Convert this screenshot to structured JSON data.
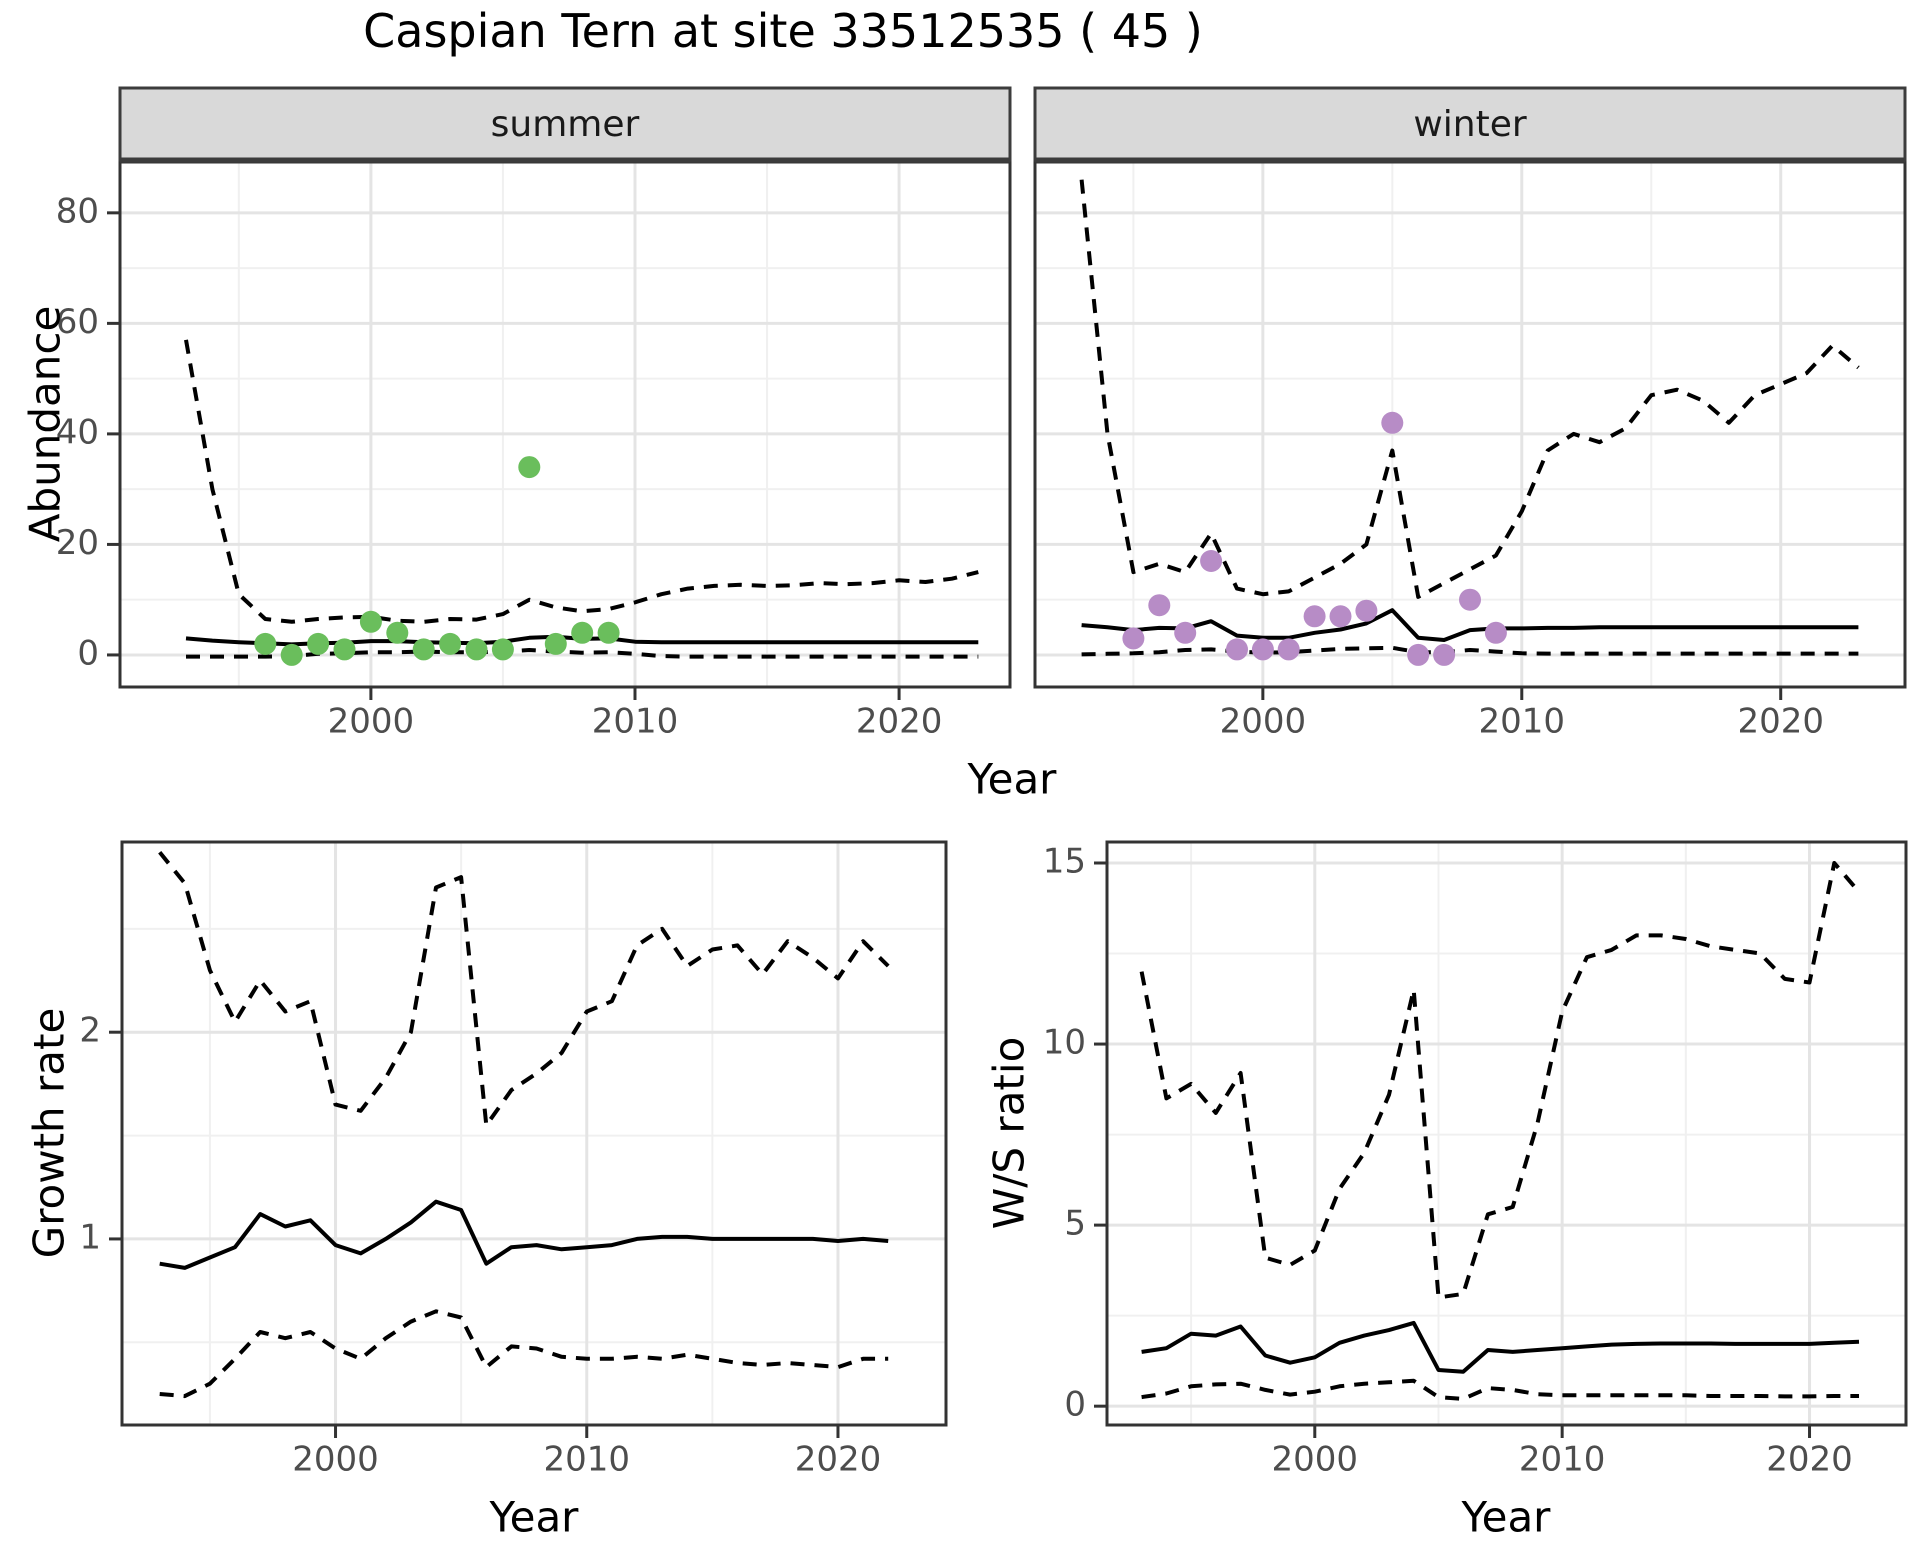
{
  "title": "Caspian Tern at site 33512535 ( 45 )",
  "colors": {
    "summer_point": "#6abe5c",
    "winter_point": "#b78cc6",
    "line": "#000000",
    "strip_fill": "#d9d9d9",
    "strip_border": "#3c3c3c",
    "panel_border": "#333333",
    "grid_major": "#e4e4e4",
    "grid_minor": "#f0f0f0",
    "tick_color": "#333333",
    "tick_label_color": "#4d4d4d",
    "text_color": "#000000"
  },
  "chart_data": [
    {
      "id": "abundance-summer",
      "type": "line",
      "facet_label": "summer",
      "xlabel": "Year",
      "ylabel": "Abundance",
      "xlim": [
        1990.5,
        2024.2
      ],
      "ylim": [
        -5.8,
        89.2
      ],
      "xticks": [
        2000,
        2010,
        2020
      ],
      "xminor": [
        1995,
        2005,
        2015
      ],
      "yticks": [
        0,
        20,
        40,
        60,
        80
      ],
      "yminor": [
        10,
        30,
        50,
        70,
        90
      ],
      "grid": true,
      "years": [
        1993,
        1994,
        1995,
        1996,
        1997,
        1998,
        1999,
        2000,
        2001,
        2002,
        2003,
        2004,
        2005,
        2006,
        2007,
        2008,
        2009,
        2010,
        2011,
        2012,
        2013,
        2014,
        2015,
        2016,
        2017,
        2018,
        2019,
        2020,
        2021,
        2022,
        2023
      ],
      "series": [
        {
          "name": "upper-ci",
          "style": "dashed",
          "values": [
            57,
            30,
            11,
            6.5,
            6,
            6.5,
            6.8,
            6.9,
            6.2,
            6,
            6.5,
            6.4,
            7.4,
            10,
            8.6,
            7.9,
            8.3,
            9.5,
            11,
            12,
            12.5,
            12.7,
            12.5,
            12.6,
            13,
            12.8,
            13,
            13.5,
            13.2,
            13.8,
            15
          ]
        },
        {
          "name": "median",
          "style": "solid",
          "values": [
            3,
            2.6,
            2.3,
            2.1,
            1.9,
            2.1,
            2.2,
            2.5,
            2.5,
            2.3,
            2.2,
            2.1,
            2.4,
            3.1,
            3.3,
            2.9,
            3,
            2.4,
            2.3,
            2.3,
            2.3,
            2.3,
            2.3,
            2.3,
            2.3,
            2.3,
            2.3,
            2.3,
            2.3,
            2.3,
            2.3
          ]
        },
        {
          "name": "lower-ci",
          "style": "dashed",
          "values": [
            -0.3,
            -0.3,
            -0.3,
            -0.3,
            -0.2,
            0.2,
            0.3,
            0.5,
            0.5,
            0.6,
            0.5,
            0.5,
            0.6,
            0.9,
            0.6,
            0.4,
            0.5,
            0.2,
            -0.2,
            -0.3,
            -0.3,
            -0.3,
            -0.3,
            -0.3,
            -0.3,
            -0.3,
            -0.3,
            -0.3,
            -0.3,
            -0.3,
            -0.3
          ]
        }
      ],
      "points": {
        "name": "observed-abundance-summer",
        "color_key": "summer_point",
        "x": [
          1996,
          1997,
          1998,
          1999,
          2000,
          2001,
          2002,
          2003,
          2004,
          2005,
          2006,
          2007,
          2008,
          2009
        ],
        "y": [
          2,
          0,
          2,
          1,
          6,
          4,
          1,
          2,
          1,
          1,
          34,
          2,
          4,
          4
        ]
      }
    },
    {
      "id": "abundance-winter",
      "type": "line",
      "facet_label": "winter",
      "xlabel": "",
      "ylabel": "",
      "xlim": [
        1991.2,
        2024.8
      ],
      "ylim": [
        -5.8,
        89.2
      ],
      "xticks": [
        2000,
        2010,
        2020
      ],
      "xminor": [
        1995,
        2005,
        2015
      ],
      "yticks": [
        0,
        20,
        40,
        60,
        80
      ],
      "yminor": [
        10,
        30,
        50,
        70,
        90
      ],
      "grid": true,
      "years": [
        1993,
        1994,
        1995,
        1996,
        1997,
        1998,
        1999,
        2000,
        2001,
        2002,
        2003,
        2004,
        2005,
        2006,
        2007,
        2008,
        2009,
        2010,
        2011,
        2012,
        2013,
        2014,
        2015,
        2016,
        2017,
        2018,
        2019,
        2020,
        2021,
        2022,
        2023
      ],
      "series": [
        {
          "name": "upper-ci",
          "style": "dashed",
          "values": [
            86,
            40,
            15,
            16.5,
            15,
            22,
            12,
            11,
            11.5,
            14,
            16.5,
            20,
            37,
            10.5,
            13,
            15.5,
            18,
            26,
            37,
            40,
            38.5,
            41,
            47,
            48,
            46,
            42,
            47,
            49,
            51,
            56,
            52
          ]
        },
        {
          "name": "median",
          "style": "solid",
          "values": [
            5.4,
            5,
            4.5,
            4.9,
            4.8,
            6.1,
            3.5,
            3.1,
            3.1,
            4,
            4.6,
            5.7,
            8.1,
            3.1,
            2.7,
            4.5,
            4.8,
            4.8,
            4.9,
            4.9,
            5,
            5,
            5,
            5,
            5,
            5,
            5,
            5,
            5,
            5,
            5
          ]
        },
        {
          "name": "lower-ci",
          "style": "dashed",
          "values": [
            0.1,
            0.2,
            0.3,
            0.5,
            0.9,
            1,
            0.6,
            0.4,
            0.5,
            0.8,
            1.1,
            1.2,
            1.3,
            0.5,
            0.5,
            0.9,
            0.6,
            0.3,
            0.25,
            0.25,
            0.25,
            0.25,
            0.25,
            0.25,
            0.25,
            0.25,
            0.25,
            0.25,
            0.25,
            0.25,
            0.25
          ]
        }
      ],
      "points": {
        "name": "observed-abundance-winter",
        "color_key": "winter_point",
        "x": [
          1995,
          1996,
          1997,
          1998,
          1999,
          2000,
          2001,
          2002,
          2003,
          2004,
          2005,
          2006,
          2007,
          2008,
          2009
        ],
        "y": [
          3,
          9,
          4,
          17,
          1,
          1,
          1,
          7,
          7,
          8,
          42,
          0,
          0,
          10,
          4
        ]
      }
    },
    {
      "id": "growth-rate",
      "type": "line",
      "facet_label": "",
      "xlabel": "Year",
      "ylabel": "Growth rate",
      "xlim": [
        1991.5,
        2024.3
      ],
      "ylim": [
        0.1,
        2.92
      ],
      "xticks": [
        2000,
        2010,
        2020
      ],
      "xminor": [
        1995,
        2005,
        2015
      ],
      "yticks": [
        1,
        2
      ],
      "yminor": [
        0.5,
        1.5,
        2.5
      ],
      "grid": true,
      "years": [
        1993,
        1994,
        1995,
        1996,
        1997,
        1998,
        1999,
        2000,
        2001,
        2002,
        2003,
        2004,
        2005,
        2006,
        2007,
        2008,
        2009,
        2010,
        2011,
        2012,
        2013,
        2014,
        2015,
        2016,
        2017,
        2018,
        2019,
        2020,
        2021,
        2022
      ],
      "series": [
        {
          "name": "upper-ci",
          "style": "dashed",
          "values": [
            2.87,
            2.72,
            2.3,
            2.05,
            2.25,
            2.1,
            2.15,
            1.65,
            1.62,
            1.78,
            2,
            2.7,
            2.75,
            1.55,
            1.72,
            1.8,
            1.9,
            2.1,
            2.15,
            2.42,
            2.5,
            2.32,
            2.4,
            2.42,
            2.28,
            2.44,
            2.36,
            2.26,
            2.44,
            2.32
          ]
        },
        {
          "name": "median",
          "style": "solid",
          "values": [
            0.88,
            0.86,
            0.91,
            0.96,
            1.12,
            1.06,
            1.09,
            0.97,
            0.93,
            1,
            1.08,
            1.18,
            1.14,
            0.88,
            0.96,
            0.97,
            0.95,
            0.96,
            0.97,
            1,
            1.01,
            1.01,
            1,
            1,
            1,
            1,
            1,
            0.99,
            1,
            0.99
          ]
        },
        {
          "name": "lower-ci",
          "style": "dashed",
          "values": [
            0.25,
            0.24,
            0.3,
            0.42,
            0.55,
            0.52,
            0.55,
            0.47,
            0.42,
            0.52,
            0.6,
            0.65,
            0.62,
            0.38,
            0.48,
            0.47,
            0.43,
            0.42,
            0.42,
            0.43,
            0.42,
            0.44,
            0.42,
            0.4,
            0.39,
            0.4,
            0.39,
            0.38,
            0.42,
            0.42
          ]
        }
      ],
      "points": null
    },
    {
      "id": "ws-ratio",
      "type": "line",
      "facet_label": "",
      "xlabel": "Year",
      "ylabel": "W/S ratio",
      "xlim": [
        1991.6,
        2023.9
      ],
      "ylim": [
        -0.52,
        15.58
      ],
      "xticks": [
        2000,
        2010,
        2020
      ],
      "xminor": [
        1995,
        2005,
        2015
      ],
      "yticks": [
        0,
        5,
        10,
        15
      ],
      "yminor": [
        2.5,
        7.5,
        12.5
      ],
      "grid": true,
      "years": [
        1993,
        1994,
        1995,
        1996,
        1997,
        1998,
        1999,
        2000,
        2001,
        2002,
        2003,
        2004,
        2005,
        2006,
        2007,
        2008,
        2009,
        2010,
        2011,
        2012,
        2013,
        2014,
        2015,
        2016,
        2017,
        2018,
        2019,
        2020,
        2021,
        2022
      ],
      "series": [
        {
          "name": "upper-ci",
          "style": "dashed",
          "values": [
            12,
            8.5,
            8.9,
            8.1,
            9.2,
            4.1,
            3.9,
            4.3,
            6,
            7,
            8.6,
            11.5,
            3,
            3.1,
            5.3,
            5.5,
            7.8,
            10.9,
            12.4,
            12.6,
            13,
            13,
            12.9,
            12.7,
            12.6,
            12.5,
            11.8,
            11.7,
            15,
            14.2
          ]
        },
        {
          "name": "median",
          "style": "solid",
          "values": [
            1.5,
            1.6,
            2,
            1.95,
            2.2,
            1.4,
            1.2,
            1.35,
            1.75,
            1.95,
            2.1,
            2.3,
            1,
            0.95,
            1.55,
            1.5,
            1.55,
            1.6,
            1.65,
            1.7,
            1.72,
            1.73,
            1.73,
            1.73,
            1.72,
            1.72,
            1.72,
            1.72,
            1.75,
            1.78
          ]
        },
        {
          "name": "lower-ci",
          "style": "dashed",
          "values": [
            0.25,
            0.35,
            0.55,
            0.6,
            0.62,
            0.45,
            0.32,
            0.4,
            0.55,
            0.62,
            0.66,
            0.7,
            0.25,
            0.2,
            0.5,
            0.45,
            0.33,
            0.3,
            0.3,
            0.3,
            0.3,
            0.3,
            0.3,
            0.28,
            0.28,
            0.28,
            0.27,
            0.27,
            0.28,
            0.28
          ]
        }
      ],
      "points": null
    }
  ]
}
